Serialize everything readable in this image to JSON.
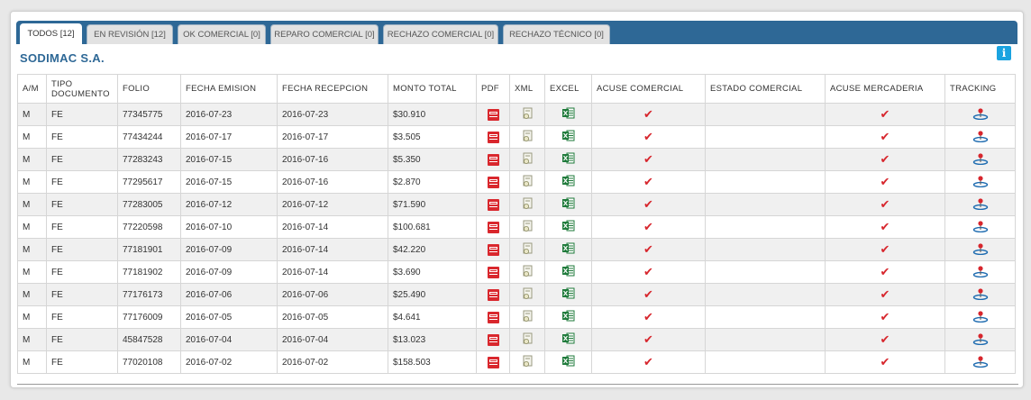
{
  "tabs": [
    {
      "label": "TODOS [12]",
      "active": true
    },
    {
      "label": "EN REVISIÓN [12]",
      "active": false
    },
    {
      "label": "OK COMERCIAL [0]",
      "active": false
    },
    {
      "label": "REPARO COMERCIAL [0]",
      "active": false
    },
    {
      "label": "RECHAZO COMERCIAL [0]",
      "active": false
    },
    {
      "label": "RECHAZO TÉCNICO [0]",
      "active": false
    }
  ],
  "company": "SODIMAC S.A.",
  "info_icon": "i",
  "colors": {
    "tabbar": "#2e6896",
    "check": "#d7262d",
    "pdf": "#d9272d",
    "excel": "#1e7a3a",
    "info": "#1aa3e0"
  },
  "icons": {
    "pdf": "pdf-icon",
    "xml": "xml-icon",
    "excel": "excel-icon",
    "check": "check-icon",
    "tracking": "tracking-icon"
  },
  "check_glyph": "✔",
  "columns": {
    "am": "A/M",
    "tipo": "TIPO DOCUMENTO",
    "folio": "FOLIO",
    "fecha_emision": "FECHA EMISION",
    "fecha_recepcion": "FECHA RECEPCION",
    "monto": "MONTO TOTAL",
    "pdf": "PDF",
    "xml": "XML",
    "excel": "EXCEL",
    "acuse_comercial": "ACUSE COMERCIAL",
    "estado_comercial": "ESTADO COMERCIAL",
    "acuse_mercaderia": "ACUSE MERCADERIA",
    "tracking": "TRACKING"
  },
  "rows": [
    {
      "am": "M",
      "tipo": "FE",
      "folio": "77345775",
      "emision": "2016-07-23",
      "recepcion": "2016-07-23",
      "monto": "$30.910",
      "acuse_comercial": true,
      "estado": "",
      "acuse_mercaderia": true
    },
    {
      "am": "M",
      "tipo": "FE",
      "folio": "77434244",
      "emision": "2016-07-17",
      "recepcion": "2016-07-17",
      "monto": "$3.505",
      "acuse_comercial": true,
      "estado": "",
      "acuse_mercaderia": true
    },
    {
      "am": "M",
      "tipo": "FE",
      "folio": "77283243",
      "emision": "2016-07-15",
      "recepcion": "2016-07-16",
      "monto": "$5.350",
      "acuse_comercial": true,
      "estado": "",
      "acuse_mercaderia": true
    },
    {
      "am": "M",
      "tipo": "FE",
      "folio": "77295617",
      "emision": "2016-07-15",
      "recepcion": "2016-07-16",
      "monto": "$2.870",
      "acuse_comercial": true,
      "estado": "",
      "acuse_mercaderia": true
    },
    {
      "am": "M",
      "tipo": "FE",
      "folio": "77283005",
      "emision": "2016-07-12",
      "recepcion": "2016-07-12",
      "monto": "$71.590",
      "acuse_comercial": true,
      "estado": "",
      "acuse_mercaderia": true
    },
    {
      "am": "M",
      "tipo": "FE",
      "folio": "77220598",
      "emision": "2016-07-10",
      "recepcion": "2016-07-14",
      "monto": "$100.681",
      "acuse_comercial": true,
      "estado": "",
      "acuse_mercaderia": true
    },
    {
      "am": "M",
      "tipo": "FE",
      "folio": "77181901",
      "emision": "2016-07-09",
      "recepcion": "2016-07-14",
      "monto": "$42.220",
      "acuse_comercial": true,
      "estado": "",
      "acuse_mercaderia": true
    },
    {
      "am": "M",
      "tipo": "FE",
      "folio": "77181902",
      "emision": "2016-07-09",
      "recepcion": "2016-07-14",
      "monto": "$3.690",
      "acuse_comercial": true,
      "estado": "",
      "acuse_mercaderia": true
    },
    {
      "am": "M",
      "tipo": "FE",
      "folio": "77176173",
      "emision": "2016-07-06",
      "recepcion": "2016-07-06",
      "monto": "$25.490",
      "acuse_comercial": true,
      "estado": "",
      "acuse_mercaderia": true
    },
    {
      "am": "M",
      "tipo": "FE",
      "folio": "77176009",
      "emision": "2016-07-05",
      "recepcion": "2016-07-05",
      "monto": "$4.641",
      "acuse_comercial": true,
      "estado": "",
      "acuse_mercaderia": true
    },
    {
      "am": "M",
      "tipo": "FE",
      "folio": "45847528",
      "emision": "2016-07-04",
      "recepcion": "2016-07-04",
      "monto": "$13.023",
      "acuse_comercial": true,
      "estado": "",
      "acuse_mercaderia": true
    },
    {
      "am": "M",
      "tipo": "FE",
      "folio": "77020108",
      "emision": "2016-07-02",
      "recepcion": "2016-07-02",
      "monto": "$158.503",
      "acuse_comercial": true,
      "estado": "",
      "acuse_mercaderia": true
    }
  ]
}
